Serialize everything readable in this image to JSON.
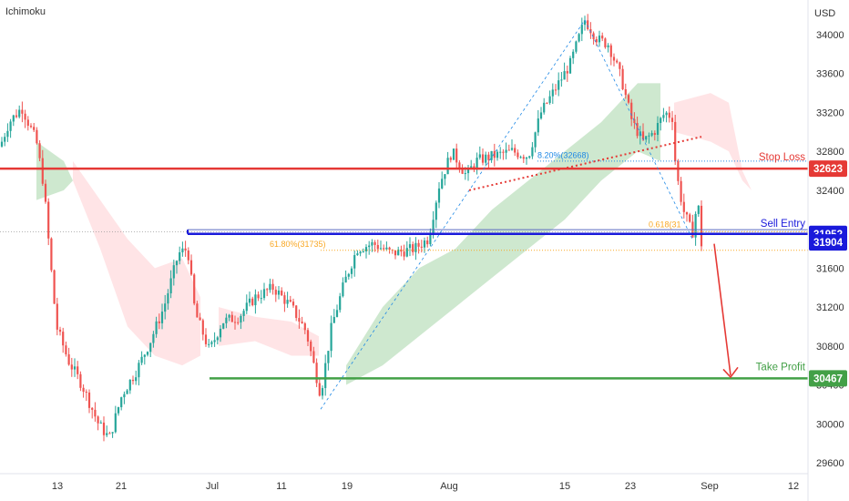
{
  "indicator_label": "Ichimoku",
  "currency_label": "USD",
  "chart_data": {
    "type": "candlestick",
    "ylim": [
      29500,
      34200
    ],
    "y_ticks": [
      29600,
      30000,
      30400,
      30800,
      31200,
      31600,
      32000,
      32400,
      32800,
      33200,
      33600,
      34000
    ],
    "x_ticks": [
      "13",
      "21",
      "Jul",
      "11",
      "19",
      "Aug",
      "15",
      "23",
      "Sep",
      "12"
    ],
    "levels": {
      "stop_loss": {
        "label": "Stop Loss",
        "value": 32623,
        "tag": "32623",
        "color": "#e53935"
      },
      "sell_entry": {
        "label": "Sell Entry",
        "value": 31952,
        "tag": "31952",
        "color": "#1a1adb"
      },
      "current": {
        "tag": "31904",
        "value": 31904,
        "color": "#1a1adb"
      },
      "take_profit": {
        "label": "Take Profit",
        "value": 30467,
        "tag": "30467",
        "color": "#43a047"
      }
    },
    "fib_labels": [
      {
        "text": "61.80%(31735)",
        "value": 31735
      },
      {
        "text": "8.20%(32668)",
        "value": 32668
      },
      {
        "text": "0.618(31",
        "value": 31890
      }
    ],
    "colors": {
      "up": "#26a69a",
      "down": "#ef5350",
      "cloud_green": "#a5d6a7",
      "cloud_red": "#ffcdd2"
    }
  }
}
